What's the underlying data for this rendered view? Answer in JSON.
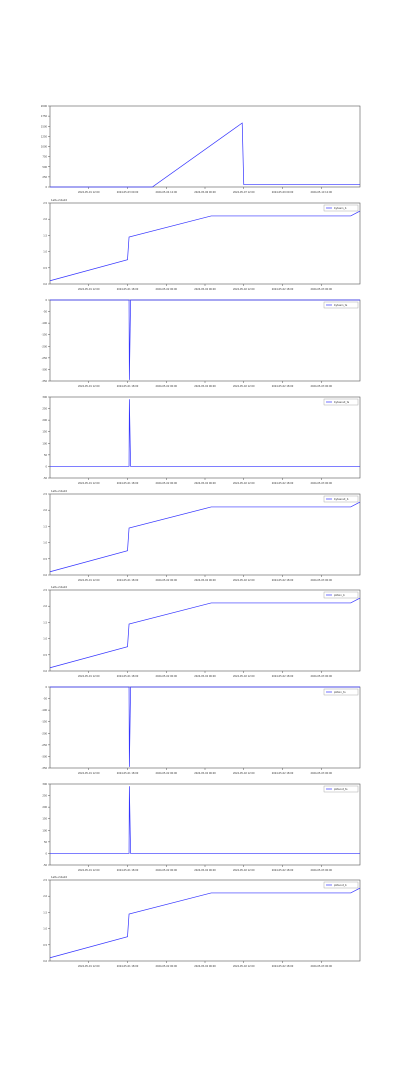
{
  "chart_data": [
    {
      "type": "line",
      "x_labels": [
        "2024-05-01 12:00",
        "2024-05-03 00:00",
        "2024-05-04 12:00",
        "2024-05-06 00:00",
        "2024-05-07 12:00",
        "2024-05-09 00:00",
        "2024-05-10 12:00"
      ],
      "yticks": [
        "0",
        "250",
        "500",
        "750",
        "1000",
        "1250",
        "1500",
        "1750",
        "2000"
      ],
      "ylim": [
        0,
        2000
      ],
      "series": [
        {
          "color": "#3333ff",
          "x": [
            0.0,
            0.33,
            0.62,
            0.625,
            1.0
          ],
          "y": [
            0,
            0,
            1580,
            60,
            60
          ]
        }
      ]
    },
    {
      "type": "line",
      "offset_text": "1e8+2.6e10",
      "legend": "bytesin_b",
      "x_labels": [
        "2024-05-01 12:00",
        "2024-05-01 18:00",
        "2024-05-02 00:00",
        "2024-05-02 06:00",
        "2024-05-02 12:00",
        "2024-05-02 18:00",
        "2024-05-03 00:00"
      ],
      "yticks": [
        "0.0",
        "0.5",
        "1.0",
        "1.5",
        "2.0",
        "2.5"
      ],
      "ylim": [
        0,
        2.5
      ],
      "series": [
        {
          "color": "#3333ff",
          "x": [
            0.0,
            0.25,
            0.255,
            0.52,
            0.97,
            1.0
          ],
          "y": [
            0.1,
            0.75,
            1.45,
            2.1,
            2.1,
            2.25
          ]
        }
      ]
    },
    {
      "type": "line",
      "legend": "bytesin_ts",
      "x_labels": [
        "2024-05-01 12:00",
        "2024-05-01 18:00",
        "2024-05-02 00:00",
        "2024-05-02 06:00",
        "2024-05-02 12:00",
        "2024-05-02 18:00",
        "2024-05-03 00:00"
      ],
      "yticks": [
        "-350",
        "-300",
        "-250",
        "-200",
        "-150",
        "-100",
        "-50",
        "0"
      ],
      "ylim": [
        -350,
        0
      ],
      "series": [
        {
          "color": "#3333ff",
          "x": [
            0.0,
            0.255,
            0.256,
            0.26,
            1.0
          ],
          "y": [
            0,
            0,
            -345,
            0,
            0
          ]
        }
      ]
    },
    {
      "type": "line",
      "legend": "bytesout_ts",
      "x_labels": [
        "2024-05-01 12:00",
        "2024-05-01 18:00",
        "2024-05-02 00:00",
        "2024-05-02 06:00",
        "2024-05-02 12:00",
        "2024-05-02 18:00",
        "2024-05-03 00:00"
      ],
      "yticks": [
        "-50",
        "0",
        "50",
        "100",
        "150",
        "200",
        "250",
        "300"
      ],
      "ylim": [
        -50,
        300
      ],
      "series": [
        {
          "color": "#3333ff",
          "x": [
            0.0,
            0.255,
            0.256,
            0.26,
            1.0
          ],
          "y": [
            0,
            0,
            290,
            0,
            0
          ]
        }
      ]
    },
    {
      "type": "line",
      "offset_text": "1e8+2.6e10",
      "legend": "bytesout_b",
      "x_labels": [
        "2024-05-01 12:00",
        "2024-05-01 18:00",
        "2024-05-02 00:00",
        "2024-05-02 06:00",
        "2024-05-02 12:00",
        "2024-05-02 18:00",
        "2024-05-03 00:00"
      ],
      "yticks": [
        "0.0",
        "0.5",
        "1.0",
        "1.5",
        "2.0",
        "2.5"
      ],
      "ylim": [
        0,
        2.5
      ],
      "series": [
        {
          "color": "#3333ff",
          "x": [
            0.0,
            0.25,
            0.255,
            0.52,
            0.97,
            1.0
          ],
          "y": [
            0.1,
            0.75,
            1.45,
            2.1,
            2.1,
            2.25
          ]
        }
      ]
    },
    {
      "type": "line",
      "offset_text": "1e8+2.6e10",
      "legend": "pktsin_b",
      "x_labels": [
        "2024-05-01 12:00",
        "2024-05-01 18:00",
        "2024-05-02 00:00",
        "2024-05-02 06:00",
        "2024-05-02 12:00",
        "2024-05-02 18:00",
        "2024-05-03 00:00"
      ],
      "yticks": [
        "0.0",
        "0.5",
        "1.0",
        "1.5",
        "2.0",
        "2.5"
      ],
      "ylim": [
        0,
        2.5
      ],
      "series": [
        {
          "color": "#3333ff",
          "x": [
            0.0,
            0.25,
            0.255,
            0.52,
            0.97,
            1.0
          ],
          "y": [
            0.1,
            0.75,
            1.45,
            2.1,
            2.1,
            2.25
          ]
        }
      ]
    },
    {
      "type": "line",
      "legend": "pktsin_ts",
      "x_labels": [
        "2024-05-01 12:00",
        "2024-05-01 18:00",
        "2024-05-02 00:00",
        "2024-05-02 06:00",
        "2024-05-02 12:00",
        "2024-05-02 18:00",
        "2024-05-03 00:00"
      ],
      "yticks": [
        "-350",
        "-300",
        "-250",
        "-200",
        "-150",
        "-100",
        "-50",
        "0"
      ],
      "ylim": [
        -350,
        0
      ],
      "series": [
        {
          "color": "#3333ff",
          "x": [
            0.0,
            0.255,
            0.256,
            0.26,
            1.0
          ],
          "y": [
            0,
            0,
            -345,
            0,
            0
          ]
        }
      ]
    },
    {
      "type": "line",
      "legend": "pktsout_ts",
      "x_labels": [
        "2024-05-01 12:00",
        "2024-05-01 18:00",
        "2024-05-02 00:00",
        "2024-05-02 06:00",
        "2024-05-02 12:00",
        "2024-05-02 18:00",
        "2024-05-03 00:00"
      ],
      "yticks": [
        "-50",
        "0",
        "50",
        "100",
        "150",
        "200",
        "250",
        "300"
      ],
      "ylim": [
        -50,
        300
      ],
      "series": [
        {
          "color": "#3333ff",
          "x": [
            0.0,
            0.255,
            0.256,
            0.26,
            1.0
          ],
          "y": [
            0,
            0,
            290,
            0,
            0
          ]
        }
      ]
    },
    {
      "type": "line",
      "offset_text": "1e8+2.6e10",
      "legend": "pktsout_b",
      "x_labels": [
        "2024-05-01 12:00",
        "2024-05-01 18:00",
        "2024-05-02 00:00",
        "2024-05-02 06:00",
        "2024-05-02 12:00",
        "2024-05-02 18:00",
        "2024-05-03 00:00"
      ],
      "yticks": [
        "0.0",
        "0.5",
        "1.0",
        "1.5",
        "2.0",
        "2.5"
      ],
      "ylim": [
        0,
        2.5
      ],
      "series": [
        {
          "color": "#3333ff",
          "x": [
            0.0,
            0.25,
            0.255,
            0.52,
            0.97,
            1.0
          ],
          "y": [
            0.1,
            0.75,
            1.45,
            2.1,
            2.1,
            2.25
          ]
        }
      ]
    }
  ]
}
